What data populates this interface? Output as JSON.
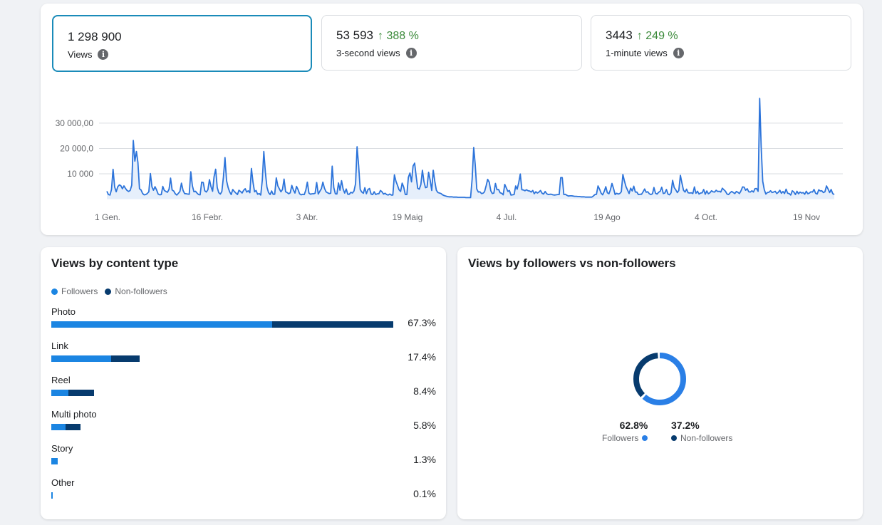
{
  "metrics": [
    {
      "value": "1 298 900",
      "change": "",
      "label": "Views",
      "selected": true
    },
    {
      "value": "53 593",
      "change": "↑ 388 %",
      "label": "3-second views",
      "selected": false
    },
    {
      "value": "3443",
      "change": "↑ 249 %",
      "label": "1-minute views",
      "selected": false
    }
  ],
  "colors": {
    "line": "#2d74da",
    "area": "#e6effb",
    "followers": "#1b85e2",
    "non_followers": "#073b6e",
    "donut_followers": "#2a7fe6",
    "selected_border": "#1a8bb9",
    "positive_change": "#3b8a3a"
  },
  "chart_data": {
    "type": "area",
    "y_ticks": [
      {
        "value": 10000,
        "label": "10 000"
      },
      {
        "value": 20000,
        "label": "20 000,0"
      },
      {
        "value": 30000,
        "label": "30 000,00"
      }
    ],
    "x_ticks": [
      "1 Gen.",
      "16 Febr.",
      "3 Abr.",
      "19 Maig",
      "4 Jul.",
      "19 Ago",
      "4 Oct.",
      "19 Nov"
    ],
    "ylim": [
      0,
      40000
    ],
    "grid": true,
    "values": [
      3100,
      1800,
      1600,
      3800,
      11800,
      4800,
      2900,
      4900,
      5600,
      5300,
      4100,
      5200,
      4200,
      3400,
      3000,
      3400,
      5500,
      23200,
      15000,
      18800,
      14400,
      4100,
      3600,
      2200,
      1700,
      1800,
      2200,
      2900,
      10100,
      4800,
      3500,
      4900,
      3600,
      2000,
      1700,
      1800,
      5000,
      3400,
      3000,
      2700,
      3900,
      8300,
      3600,
      3200,
      2100,
      1600,
      2300,
      3000,
      6300,
      3500,
      2200,
      2100,
      2000,
      1900,
      10800,
      5300,
      2900,
      3100,
      2400,
      1800,
      1700,
      6700,
      6600,
      3300,
      2800,
      3700,
      7700,
      4900,
      3100,
      8900,
      11800,
      4600,
      2500,
      2000,
      3000,
      8700,
      16400,
      7300,
      4600,
      2900,
      1800,
      3800,
      3000,
      2400,
      1800,
      3500,
      3000,
      2400,
      3500,
      4100,
      2800,
      3300,
      2500,
      12100,
      6700,
      2900,
      3400,
      1900,
      2200,
      1600,
      7600,
      18800,
      10500,
      4700,
      2600,
      1800,
      3200,
      1900,
      1900,
      8400,
      5200,
      4000,
      2900,
      3800,
      7900,
      2900,
      2600,
      2100,
      2500,
      5400,
      3600,
      2400,
      5000,
      3800,
      2100,
      1700,
      1900,
      1800,
      3500,
      6700,
      2400,
      1900,
      2100,
      2100,
      2300,
      6600,
      2000,
      3100,
      4100,
      6700,
      4300,
      2900,
      2500,
      2200,
      2300,
      13000,
      4600,
      2100,
      2000,
      6400,
      3500,
      7300,
      4000,
      2400,
      4000,
      1900,
      1900,
      2700,
      2400,
      3200,
      6100,
      20700,
      13200,
      3800,
      2800,
      2300,
      4500,
      2100,
      3800,
      4200,
      2000,
      1800,
      2900,
      1800,
      2100,
      2100,
      3400,
      2900,
      2000,
      2300,
      1800,
      1600,
      2000,
      1600,
      1600,
      9600,
      7000,
      5400,
      3700,
      3000,
      6300,
      4700,
      1800,
      1800,
      8600,
      10300,
      6800,
      13100,
      14200,
      9100,
      4300,
      3900,
      5700,
      11400,
      6900,
      4500,
      4700,
      10600,
      7500,
      3400,
      11400,
      7000,
      3500,
      2600,
      2400,
      2200,
      1700,
      1400,
      1200,
      1000,
      900,
      900,
      900,
      800,
      800,
      800,
      700,
      700,
      700,
      700,
      700,
      600,
      600,
      600,
      600,
      7900,
      20400,
      13700,
      4000,
      2800,
      2900,
      2200,
      2300,
      2900,
      5200,
      7800,
      6700,
      3300,
      2200,
      2400,
      6200,
      3700,
      3800,
      2500,
      2300,
      1700,
      5800,
      4400,
      3000,
      3400,
      1600,
      1700,
      1800,
      5200,
      3900,
      6500,
      9900,
      3700,
      3600,
      3300,
      3700,
      3300,
      3200,
      2800,
      3400,
      2100,
      2900,
      2400,
      2800,
      3400,
      2300,
      2000,
      3000,
      2100,
      1800,
      1900,
      1900,
      1700,
      1600,
      1700,
      1800,
      1800,
      8500,
      8500,
      1800,
      1900,
      1500,
      1200,
      1300,
      1300,
      1200,
      1100,
      1100,
      1000,
      1000,
      900,
      900,
      900,
      800,
      800,
      800,
      800,
      800,
      1200,
      1800,
      1900,
      5200,
      3900,
      2300,
      1700,
      3000,
      4900,
      2500,
      2100,
      3700,
      6200,
      4200,
      1800,
      2300,
      2000,
      2200,
      2900,
      9700,
      7100,
      4900,
      3600,
      2200,
      4300,
      3200,
      5100,
      2800,
      2800,
      1800,
      1900,
      1900,
      2900,
      4000,
      2700,
      2900,
      2100,
      1800,
      2100,
      4600,
      2300,
      2000,
      2700,
      3100,
      4700,
      2200,
      2400,
      3800,
      2000,
      1700,
      2500,
      7400,
      4600,
      3700,
      2600,
      3400,
      9400,
      6300,
      3500,
      2800,
      3900,
      2500,
      2400,
      2500,
      2200,
      4800,
      2300,
      3100,
      2000,
      2400,
      2500,
      3800,
      1900,
      3200,
      2100,
      2500,
      3300,
      2900,
      2800,
      3500,
      3000,
      3100,
      2800,
      4300,
      3700,
      3100,
      2000,
      1800,
      2500,
      3000,
      2600,
      2200,
      3000,
      2700,
      2200,
      3300,
      4800,
      4700,
      3500,
      4100,
      2900,
      2800,
      3300,
      2800,
      4100,
      4200,
      3100,
      39800,
      20000,
      7000,
      3700,
      2000,
      2600,
      2700,
      3300,
      2600,
      2800,
      3100,
      2200,
      2700,
      3500,
      2300,
      3000,
      2200,
      3900,
      2300,
      2200,
      1600,
      3300,
      2800,
      1800,
      3100,
      2100,
      2800,
      2400,
      2600,
      1900,
      3100,
      2100,
      2400,
      2900,
      2800,
      3800,
      2300,
      2000,
      3700,
      3200,
      3300,
      2600,
      2900,
      5200,
      4000,
      2600,
      3800,
      2200,
      1800
    ]
  },
  "content_type": {
    "title": "Views by content type",
    "legend": [
      "Followers",
      "Non-followers"
    ],
    "rows": [
      {
        "label": "Photo",
        "percent": "67.3%",
        "followers_share": 0.645,
        "non_followers_share": 0.355,
        "total": 67.3
      },
      {
        "label": "Link",
        "percent": "17.4%",
        "followers_share": 0.68,
        "non_followers_share": 0.32,
        "total": 17.4
      },
      {
        "label": "Reel",
        "percent": "8.4%",
        "followers_share": 0.4,
        "non_followers_share": 0.6,
        "total": 8.4
      },
      {
        "label": "Multi photo",
        "percent": "5.8%",
        "followers_share": 0.48,
        "non_followers_share": 0.52,
        "total": 5.8
      },
      {
        "label": "Story",
        "percent": "1.3%",
        "followers_share": 1.0,
        "non_followers_share": 0.0,
        "total": 1.3
      },
      {
        "label": "Other",
        "percent": "0.1%",
        "followers_share": 1.0,
        "non_followers_share": 0.0,
        "total": 0.1
      }
    ]
  },
  "followers_split": {
    "title": "Views by followers vs non-followers",
    "followers_percent": "62.8%",
    "followers_label": "Followers",
    "followers_value": 62.8,
    "non_followers_percent": "37.2%",
    "non_followers_label": "Non-followers",
    "non_followers_value": 37.2
  }
}
